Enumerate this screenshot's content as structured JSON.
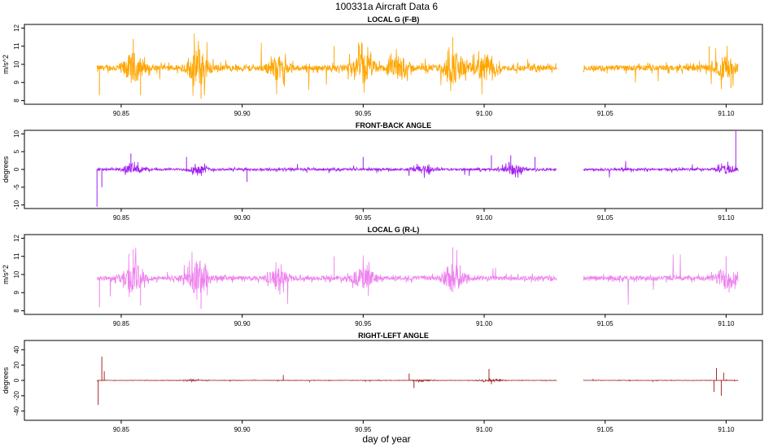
{
  "page": {
    "title": "100331a   Aircraft Data 6",
    "xlabel": "day of year"
  },
  "chart_data": [
    {
      "type": "line",
      "title": "LOCAL G (F-B)",
      "xlabel": "",
      "ylabel": "m/s^2",
      "color": "#FFA500",
      "xlim": [
        90.81,
        91.115
      ],
      "ylim": [
        7.8,
        12.2
      ],
      "xticks": [
        90.85,
        90.9,
        90.95,
        91.0,
        91.05,
        91.1
      ],
      "xtick_labels": [
        "90.85",
        "90.90",
        "90.95",
        "91.00",
        "91.05",
        "91.10"
      ],
      "yticks": [
        8,
        9,
        10,
        11,
        12
      ],
      "ytick_labels": [
        "8",
        "9",
        "10",
        "11",
        "12"
      ],
      "baseline": 9.8,
      "segments": [
        [
          90.84,
          91.03
        ],
        [
          91.041,
          91.105
        ]
      ],
      "noise_level": 0.25,
      "bursts": [
        {
          "x": 90.855,
          "amp": 1.2
        },
        {
          "x": 90.882,
          "amp": 1.6
        },
        {
          "x": 90.915,
          "amp": 0.9
        },
        {
          "x": 90.95,
          "amp": 1.2
        },
        {
          "x": 90.965,
          "amp": 0.9
        },
        {
          "x": 90.988,
          "amp": 1.3
        },
        {
          "x": 91.0,
          "amp": 1.0
        },
        {
          "x": 91.1,
          "amp": 0.9
        }
      ],
      "spikes": [
        {
          "x": 90.841,
          "v": 8.3
        },
        {
          "x": 90.855,
          "v": 11.4
        },
        {
          "x": 90.858,
          "v": 8.3
        },
        {
          "x": 90.883,
          "v": 8.1
        },
        {
          "x": 90.938,
          "v": 11.0
        },
        {
          "x": 90.987,
          "v": 11.5
        },
        {
          "x": 91.093,
          "v": 11.0
        },
        {
          "x": 91.102,
          "v": 8.7
        }
      ]
    },
    {
      "type": "line",
      "title": "FRONT-BACK ANGLE",
      "xlabel": "",
      "ylabel": "degrees",
      "color": "#A020F0",
      "xlim": [
        90.81,
        91.115
      ],
      "ylim": [
        -11,
        11
      ],
      "xticks": [
        90.85,
        90.9,
        90.95,
        91.0,
        91.05,
        91.1
      ],
      "xtick_labels": [
        "90.85",
        "90.90",
        "90.95",
        "91.00",
        "91.05",
        "91.10"
      ],
      "yticks": [
        -10,
        -5,
        0,
        5,
        10
      ],
      "ytick_labels": [
        "-10",
        "-5",
        "0",
        "5",
        "10"
      ],
      "baseline": 0,
      "segments": [
        [
          90.84,
          91.03
        ],
        [
          91.041,
          91.105
        ]
      ],
      "noise_level": 0.5,
      "bursts": [
        {
          "x": 90.855,
          "amp": 1.8
        },
        {
          "x": 90.882,
          "amp": 1.5
        },
        {
          "x": 90.975,
          "amp": 1.5
        },
        {
          "x": 91.012,
          "amp": 2.0
        },
        {
          "x": 91.1,
          "amp": 1.5
        }
      ],
      "spikes": [
        {
          "x": 90.84,
          "v": -10.5
        },
        {
          "x": 90.842,
          "v": -5.0
        },
        {
          "x": 90.854,
          "v": 4.5
        },
        {
          "x": 90.877,
          "v": 3.5
        },
        {
          "x": 90.902,
          "v": -3.5
        },
        {
          "x": 90.95,
          "v": 3.5
        },
        {
          "x": 91.003,
          "v": 4.0
        },
        {
          "x": 91.011,
          "v": 4.0
        },
        {
          "x": 91.021,
          "v": 3.5
        },
        {
          "x": 91.104,
          "v": 10.8
        }
      ]
    },
    {
      "type": "line",
      "title": "LOCAL G (R-L)",
      "xlabel": "",
      "ylabel": "m/s^2",
      "color": "#EE82EE",
      "xlim": [
        90.81,
        91.115
      ],
      "ylim": [
        7.8,
        12.2
      ],
      "xticks": [
        90.85,
        90.9,
        90.95,
        91.0,
        91.05,
        91.1
      ],
      "xtick_labels": [
        "90.85",
        "90.90",
        "90.95",
        "91.00",
        "91.05",
        "91.10"
      ],
      "yticks": [
        8,
        9,
        10,
        11,
        12
      ],
      "ytick_labels": [
        "8",
        "9",
        "10",
        "11",
        "12"
      ],
      "baseline": 9.8,
      "segments": [
        [
          90.84,
          91.03
        ],
        [
          91.041,
          91.105
        ]
      ],
      "noise_level": 0.2,
      "bursts": [
        {
          "x": 90.855,
          "amp": 1.3
        },
        {
          "x": 90.882,
          "amp": 1.5
        },
        {
          "x": 90.915,
          "amp": 0.7
        },
        {
          "x": 90.95,
          "amp": 0.9
        },
        {
          "x": 90.987,
          "amp": 1.2
        },
        {
          "x": 91.1,
          "amp": 0.9
        }
      ],
      "spikes": [
        {
          "x": 90.841,
          "v": 8.2
        },
        {
          "x": 90.855,
          "v": 11.4
        },
        {
          "x": 90.858,
          "v": 8.3
        },
        {
          "x": 90.883,
          "v": 8.1
        },
        {
          "x": 90.938,
          "v": 11.0
        },
        {
          "x": 90.987,
          "v": 11.5
        },
        {
          "x": 91.1,
          "v": 11.0
        }
      ]
    },
    {
      "type": "line",
      "title": "RIGHT-LEFT ANGLE",
      "xlabel": "",
      "ylabel": "degrees",
      "color": "#A52A2A",
      "xlim": [
        90.81,
        91.115
      ],
      "ylim": [
        -52,
        52
      ],
      "xticks": [
        90.85,
        90.9,
        90.95,
        91.0,
        91.05,
        91.1
      ],
      "xtick_labels": [
        "90.85",
        "90.90",
        "90.95",
        "91.00",
        "91.05",
        "91.10"
      ],
      "yticks": [
        -40,
        -20,
        0,
        20,
        40
      ],
      "ytick_labels": [
        "-40",
        "-20",
        "0",
        "20",
        "40"
      ],
      "baseline": 0,
      "segments": [
        [
          90.84,
          91.03
        ],
        [
          91.041,
          91.105
        ]
      ],
      "noise_level": 0.4,
      "bursts": [
        {
          "x": 90.88,
          "amp": 1.0
        },
        {
          "x": 90.975,
          "amp": 1.5
        },
        {
          "x": 91.002,
          "amp": 2.5
        }
      ],
      "spikes": [
        {
          "x": 90.8405,
          "v": -32
        },
        {
          "x": 90.842,
          "v": 31
        },
        {
          "x": 90.843,
          "v": 12
        },
        {
          "x": 90.917,
          "v": 7
        },
        {
          "x": 90.969,
          "v": 9
        },
        {
          "x": 90.971,
          "v": -10
        },
        {
          "x": 91.002,
          "v": 15
        },
        {
          "x": 91.003,
          "v": -5
        },
        {
          "x": 91.095,
          "v": -15
        },
        {
          "x": 91.096,
          "v": 16
        },
        {
          "x": 91.098,
          "v": -20
        },
        {
          "x": 91.099,
          "v": 10
        }
      ]
    }
  ]
}
